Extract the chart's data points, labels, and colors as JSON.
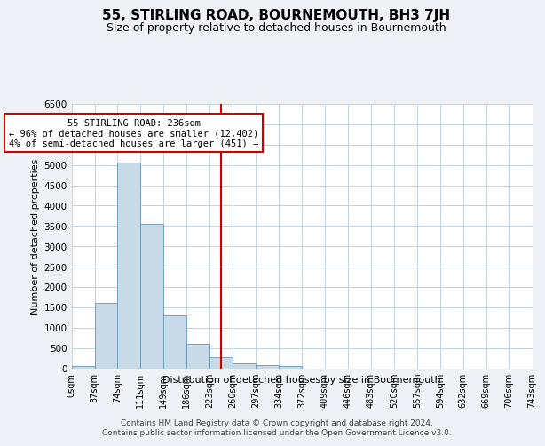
{
  "title": "55, STIRLING ROAD, BOURNEMOUTH, BH3 7JH",
  "subtitle": "Size of property relative to detached houses in Bournemouth",
  "xlabel": "Distribution of detached houses by size in Bournemouth",
  "ylabel": "Number of detached properties",
  "bar_values": [
    50,
    1600,
    5050,
    3550,
    1300,
    600,
    280,
    120,
    80,
    50,
    0,
    0,
    0,
    0,
    0,
    0,
    0,
    0,
    0,
    0
  ],
  "bin_labels": [
    "0sqm",
    "37sqm",
    "74sqm",
    "111sqm",
    "149sqm",
    "186sqm",
    "223sqm",
    "260sqm",
    "297sqm",
    "334sqm",
    "372sqm",
    "409sqm",
    "446sqm",
    "483sqm",
    "520sqm",
    "557sqm",
    "594sqm",
    "632sqm",
    "669sqm",
    "706sqm",
    "743sqm"
  ],
  "property_line_x": 6.0,
  "property_line_label": "55 STIRLING ROAD: 236sqm",
  "annotation_line1": "← 96% of detached houses are smaller (12,402)",
  "annotation_line2": "4% of semi-detached houses are larger (451) →",
  "bar_color": "#c8d9e8",
  "bar_edgecolor": "#6699bb",
  "line_color": "#cc0000",
  "annotation_box_edgecolor": "#cc0000",
  "background_color": "#eef2f7",
  "plot_background": "#ffffff",
  "ylim": [
    0,
    6500
  ],
  "yticks": [
    0,
    500,
    1000,
    1500,
    2000,
    2500,
    3000,
    3500,
    4000,
    4500,
    5000,
    5500,
    6000,
    6500
  ],
  "footer_line1": "Contains HM Land Registry data © Crown copyright and database right 2024.",
  "footer_line2": "Contains public sector information licensed under the Open Government Licence v3.0."
}
